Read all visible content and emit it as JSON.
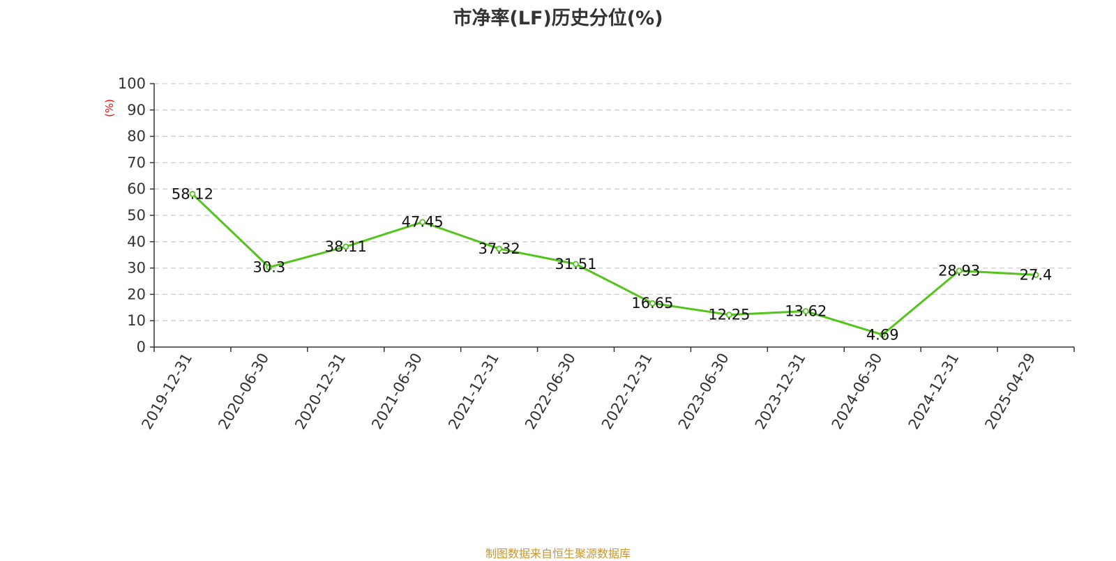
{
  "title": "市净率(LF)历史分位(%)",
  "source_note": "制图数据来自恒生聚源数据库",
  "colors": {
    "line": "#52c41a",
    "axis": "#333333",
    "grid": "#cccccc",
    "unit_label": "#ff0000",
    "source_note": "#c8962e"
  },
  "chart_data": {
    "type": "line",
    "title": "市净率(LF)历史分位(%)",
    "xlabel": "",
    "ylabel": "(%)",
    "ylim": [
      0,
      100
    ],
    "yticks": [
      0,
      10,
      20,
      30,
      40,
      50,
      60,
      70,
      80,
      90,
      100
    ],
    "grid": true,
    "categories": [
      "2019-12-31",
      "2020-06-30",
      "2020-12-31",
      "2021-06-30",
      "2021-12-31",
      "2022-06-30",
      "2022-12-31",
      "2023-06-30",
      "2023-12-31",
      "2024-06-30",
      "2024-12-31",
      "2025-04-29"
    ],
    "series": [
      {
        "values": [
          58.12,
          30.3,
          38.11,
          47.45,
          37.32,
          31.51,
          16.65,
          12.25,
          13.62,
          4.69,
          28.93,
          27.4
        ]
      }
    ]
  }
}
